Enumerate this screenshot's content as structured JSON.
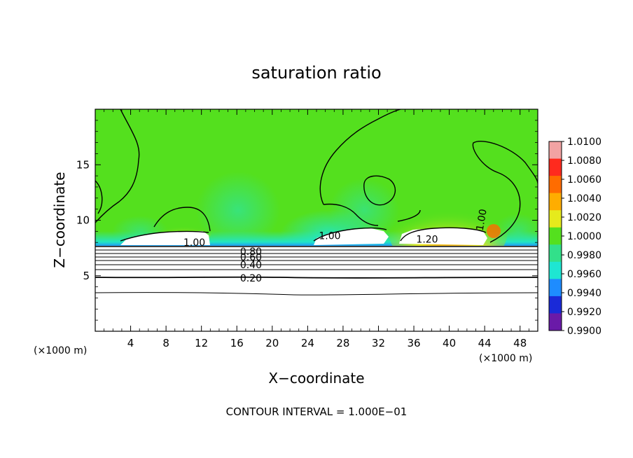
{
  "chart_data": {
    "type": "heatmap",
    "title": "saturation ratio",
    "xlabel": "X−coordinate",
    "ylabel": "Z−coordinate",
    "x_unit_left": "(×1000 m)",
    "x_unit_right": "(×1000 m)",
    "footer": "CONTOUR INTERVAL = 1.000E−01",
    "xlim": [
      0,
      50
    ],
    "ylim": [
      0,
      20
    ],
    "x_ticks": [
      4,
      8,
      12,
      16,
      20,
      24,
      28,
      32,
      36,
      40,
      44,
      48
    ],
    "x_tick_labels": [
      "4",
      "8",
      "12",
      "16",
      "20",
      "24",
      "28",
      "32",
      "36",
      "40",
      "44",
      "48"
    ],
    "y_ticks": [
      5,
      10,
      15
    ],
    "y_tick_labels": [
      "5",
      "10",
      "15"
    ],
    "colorbar": {
      "min": 0.99,
      "max": 1.01,
      "tick_values": [
        1.01,
        1.008,
        1.006,
        1.004,
        1.002,
        1.0,
        0.998,
        0.996,
        0.994,
        0.992,
        0.99
      ],
      "tick_labels": [
        "1.0100",
        "1.0080",
        "1.0060",
        "1.0040",
        "1.0020",
        "1.0000",
        "0.9980",
        "0.9960",
        "0.9940",
        "0.9920",
        "0.9900"
      ],
      "band_colors": [
        "#f2a3a3",
        "#ff2a1e",
        "#ff6c00",
        "#ffad00",
        "#e6ea1c",
        "#54e01e",
        "#32e08a",
        "#1ee6d2",
        "#1e8cff",
        "#1a2ad8",
        "#6a1aa8"
      ]
    },
    "contour_labels": [
      {
        "text": "1.00",
        "x": 11.2,
        "z": 8.0
      },
      {
        "text": "1.00",
        "x": 26.5,
        "z": 8.6
      },
      {
        "text": "1.20",
        "x": 37.5,
        "z": 8.3
      },
      {
        "text": "1.00",
        "x": 44.0,
        "z": 10.3
      },
      {
        "text": "0.80",
        "x": 17.6,
        "z": 7.2
      },
      {
        "text": "0.60",
        "x": 17.6,
        "z": 6.7
      },
      {
        "text": "0.40",
        "x": 17.6,
        "z": 6.0
      },
      {
        "text": "0.20",
        "x": 17.6,
        "z": 4.8
      }
    ],
    "colors": {
      "field_base": "#54e01e",
      "moist_blue": "#1ee6d2",
      "dry_white": "#ffffff",
      "warm_yellow": "#e6ea1c",
      "warm_orange": "#ff6c00",
      "warm_red": "#ff2a1e"
    }
  }
}
